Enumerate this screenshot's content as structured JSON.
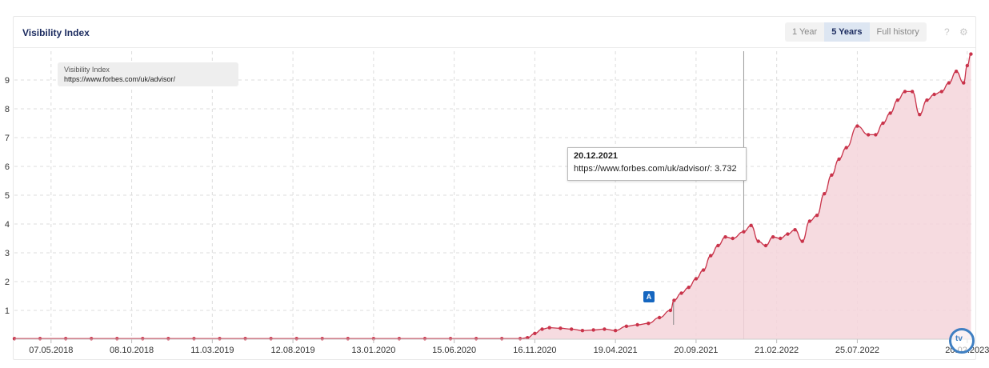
{
  "header": {
    "title": "Visibility Index",
    "ranges": [
      "1 Year",
      "5 Years",
      "Full history"
    ],
    "active_range": "5 Years",
    "help_icon": "question-icon",
    "settings_icon": "gear-icon"
  },
  "legend": {
    "line1": "Visibility Index",
    "line2": "https://www.forbes.com/uk/advisor/"
  },
  "tooltip": {
    "date": "20.12.2021",
    "value_text": "https://www.forbes.com/uk/advisor/: 3.732"
  },
  "annotation": {
    "label": "A",
    "date": "08.08.2021"
  },
  "colors": {
    "line": "#c9334a",
    "fill": "#f5d5da",
    "crosshair": "#999999",
    "grid": "#dddddd",
    "badge": "#1566c0"
  },
  "chart_data": {
    "type": "area",
    "title": "Visibility Index",
    "series": [
      {
        "name": "https://www.forbes.com/uk/advisor/",
        "x": [
          "2018-02-26",
          "2018-04-16",
          "2018-06-04",
          "2018-07-23",
          "2018-09-10",
          "2018-10-29",
          "2018-12-17",
          "2019-02-04",
          "2019-03-25",
          "2019-05-13",
          "2019-07-01",
          "2019-08-19",
          "2019-10-07",
          "2019-11-25",
          "2020-01-13",
          "2020-03-02",
          "2020-04-20",
          "2020-06-08",
          "2020-07-27",
          "2020-09-14",
          "2020-10-19",
          "2020-11-02",
          "2020-11-16",
          "2020-11-30",
          "2020-12-14",
          "2021-01-04",
          "2021-01-25",
          "2021-02-15",
          "2021-03-08",
          "2021-03-29",
          "2021-04-19",
          "2021-05-10",
          "2021-05-31",
          "2021-06-21",
          "2021-07-12",
          "2021-08-02",
          "2021-08-09",
          "2021-08-23",
          "2021-09-06",
          "2021-09-20",
          "2021-10-04",
          "2021-10-18",
          "2021-11-01",
          "2021-11-15",
          "2021-11-29",
          "2021-12-20",
          "2022-01-03",
          "2022-01-17",
          "2022-01-31",
          "2022-02-14",
          "2022-02-28",
          "2022-03-14",
          "2022-03-28",
          "2022-04-11",
          "2022-04-25",
          "2022-05-09",
          "2022-05-23",
          "2022-06-06",
          "2022-06-20",
          "2022-07-04",
          "2022-07-25",
          "2022-08-15",
          "2022-08-29",
          "2022-09-12",
          "2022-09-26",
          "2022-10-10",
          "2022-10-24",
          "2022-11-07",
          "2022-11-21",
          "2022-12-05",
          "2022-12-19",
          "2023-01-02",
          "2023-01-16",
          "2023-01-30",
          "2023-02-13",
          "2023-02-20",
          "2023-02-27"
        ],
        "values": [
          0.02,
          0.02,
          0.02,
          0.02,
          0.02,
          0.02,
          0.02,
          0.02,
          0.02,
          0.02,
          0.02,
          0.02,
          0.02,
          0.02,
          0.02,
          0.02,
          0.02,
          0.02,
          0.02,
          0.02,
          0.02,
          0.05,
          0.2,
          0.35,
          0.4,
          0.38,
          0.35,
          0.3,
          0.32,
          0.35,
          0.3,
          0.45,
          0.5,
          0.55,
          0.75,
          1.0,
          1.35,
          1.6,
          1.8,
          2.1,
          2.4,
          2.9,
          3.25,
          3.55,
          3.5,
          3.732,
          3.95,
          3.4,
          3.25,
          3.55,
          3.5,
          3.65,
          3.8,
          3.4,
          4.1,
          4.3,
          5.05,
          5.7,
          6.25,
          6.65,
          7.4,
          7.1,
          7.1,
          7.5,
          7.85,
          8.3,
          8.6,
          8.6,
          7.8,
          8.3,
          8.5,
          8.6,
          8.9,
          9.3,
          8.9,
          9.5,
          9.9
        ]
      }
    ],
    "x_ticks": [
      "07.05.2018",
      "08.10.2018",
      "11.03.2019",
      "12.08.2019",
      "13.01.2020",
      "15.06.2020",
      "16.11.2020",
      "19.04.2021",
      "20.09.2021",
      "21.02.2022",
      "25.07.2022",
      "20.02.2023"
    ],
    "x_tick_dates": [
      "2018-05-07",
      "2018-10-08",
      "2019-03-11",
      "2019-08-12",
      "2020-01-13",
      "2020-06-15",
      "2020-11-16",
      "2021-04-19",
      "2021-09-20",
      "2022-02-21",
      "2022-07-25",
      "2023-02-20"
    ],
    "xlim": [
      "2018-02-26",
      "2023-03-06"
    ],
    "y_ticks": [
      1,
      2,
      3,
      4,
      5,
      6,
      7,
      8,
      9
    ],
    "ylim": [
      0,
      10
    ],
    "crosshair_date": "2021-12-20",
    "grid": true,
    "legend_position": "top-left"
  }
}
